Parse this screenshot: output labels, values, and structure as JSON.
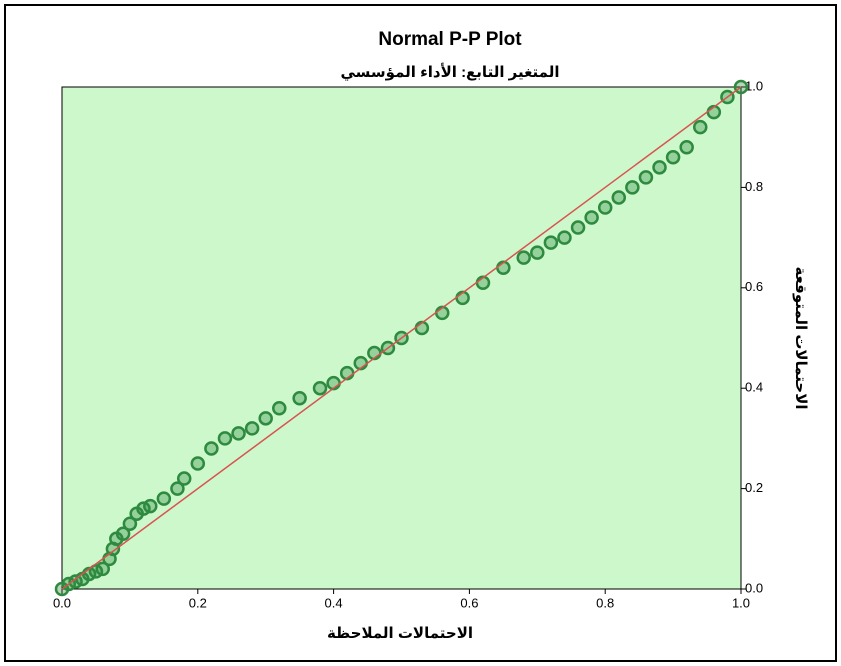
{
  "chart_data": {
    "type": "scatter",
    "title": "Normal P-P Plot",
    "subtitle": "المتغير التابع: الأداء المؤسسي",
    "x_label": "الاحتمالات الملاحظة",
    "y_label": "الاحتمالات المتوقعة",
    "x": [
      0.0,
      0.01,
      0.02,
      0.03,
      0.04,
      0.05,
      0.06,
      0.07,
      0.075,
      0.08,
      0.09,
      0.1,
      0.11,
      0.12,
      0.13,
      0.15,
      0.17,
      0.18,
      0.2,
      0.22,
      0.24,
      0.26,
      0.28,
      0.3,
      0.32,
      0.35,
      0.38,
      0.4,
      0.42,
      0.44,
      0.46,
      0.48,
      0.5,
      0.53,
      0.56,
      0.59,
      0.62,
      0.65,
      0.68,
      0.7,
      0.72,
      0.74,
      0.76,
      0.78,
      0.8,
      0.82,
      0.84,
      0.86,
      0.88,
      0.9,
      0.92,
      0.94,
      0.96,
      0.98,
      1.0
    ],
    "values": [
      0.0,
      0.01,
      0.015,
      0.02,
      0.03,
      0.035,
      0.04,
      0.06,
      0.08,
      0.1,
      0.11,
      0.13,
      0.15,
      0.16,
      0.165,
      0.18,
      0.2,
      0.22,
      0.25,
      0.28,
      0.3,
      0.31,
      0.32,
      0.34,
      0.36,
      0.38,
      0.4,
      0.41,
      0.43,
      0.45,
      0.47,
      0.48,
      0.5,
      0.52,
      0.55,
      0.58,
      0.61,
      0.64,
      0.66,
      0.67,
      0.69,
      0.7,
      0.72,
      0.74,
      0.76,
      0.78,
      0.8,
      0.82,
      0.84,
      0.86,
      0.88,
      0.92,
      0.95,
      0.98,
      1.0
    ],
    "point_color": "#2e8a3e",
    "reference_line": {
      "x": [
        0,
        1
      ],
      "y": [
        0,
        1
      ],
      "color": "#d9534f"
    },
    "xlim": [
      0,
      1
    ],
    "ylim": [
      0,
      1
    ],
    "xticks": [
      {
        "value": 0,
        "label": "0.0"
      },
      0.2,
      0.4,
      0.6,
      0.8,
      {
        "value": 1,
        "label": "1.0"
      }
    ],
    "yticks": [
      {
        "value": 0,
        "label": "0.0"
      },
      0.2,
      0.4,
      0.6,
      0.8,
      {
        "value": 1,
        "label": "1.0"
      }
    ],
    "plot_background": "#ccf8cc"
  }
}
